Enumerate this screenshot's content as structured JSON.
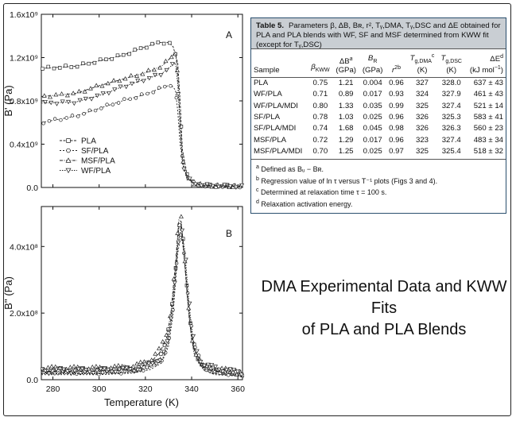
{
  "table": {
    "title_bold": "Table 5.",
    "title_text": "Parameters β, ΔB, Bʀ, r², Tᵧ,DMA, Tᵧ,DSC and ΔE obtained for PLA and PLA blends with WF, SF and MSF determined from KWW fit (except for Tᵧ,DSC)",
    "headers": [
      "Sample",
      "β_KWW",
      "ΔB^a (GPa)",
      "B_R (GPa)",
      "r^2b",
      "T_g,DMA^c (K)",
      "T_g,DSC (K)",
      "ΔE^d (kJ mol−1)"
    ],
    "header_display": {
      "sample": "Sample",
      "beta": "β",
      "beta_sub": "KWW",
      "db": "ΔB",
      "db_sup": "a",
      "db_unit": "(GPa)",
      "br": "B",
      "br_sub": "R",
      "br_unit": "(GPa)",
      "r2": "r",
      "r2_sup": "2b",
      "tgdma": "T",
      "tgdma_sub": "g,DMA",
      "tgdma_sup": "c",
      "tgdma_unit": "(K)",
      "tgdsc": "T",
      "tgdsc_sub": "g,DSC",
      "tgdsc_unit": "(K)",
      "de": "ΔE",
      "de_sup": "d",
      "de_unit": "(kJ mol",
      "de_unit_sup": "−1",
      "de_unit_end": ")"
    },
    "rows": [
      [
        "PLA",
        "0.75",
        "1.21",
        "0.004",
        "0.96",
        "327",
        "328.0",
        "637 ± 43"
      ],
      [
        "WF/PLA",
        "0.71",
        "0.89",
        "0.017",
        "0.93",
        "324",
        "327.9",
        "461 ± 43"
      ],
      [
        "WF/PLA/MDI",
        "0.80",
        "1.33",
        "0.035",
        "0.99",
        "325",
        "327.4",
        "521 ± 14"
      ],
      [
        "SF/PLA",
        "0.78",
        "1.03",
        "0.025",
        "0.96",
        "326",
        "325.3",
        "583 ± 41"
      ],
      [
        "SF/PLA/MDI",
        "0.74",
        "1.68",
        "0.045",
        "0.98",
        "326",
        "326.3",
        "560 ± 23"
      ],
      [
        "MSF/PLA",
        "0.72",
        "1.29",
        "0.017",
        "0.96",
        "323",
        "327.4",
        "483 ± 34"
      ],
      [
        "MSF/PLA/MDI",
        "0.70",
        "1.25",
        "0.025",
        "0.97",
        "325",
        "325.4",
        "518 ± 32"
      ]
    ],
    "notes": {
      "a_mark": "a",
      "a_text": "Defined as Bᵤ − Bʀ.",
      "b_mark": "b",
      "b_text": "Regression value of ln τ versus T⁻¹ plots (Figs 3 and 4).",
      "c_mark": "c",
      "c_text": "Determined at relaxation time τ = 100 s.",
      "d_mark": "d",
      "d_text": "Relaxation activation energy."
    }
  },
  "headline": {
    "line1": "DMA Experimental Data and KWW Fits",
    "line2": "of PLA and PLA Blends"
  },
  "chart_data": [
    {
      "type": "line",
      "panel": "A",
      "ylabel": "B' (Pa)",
      "xlabel": "",
      "xlim": [
        275,
        362
      ],
      "ylim": [
        0,
        1600000000.0
      ],
      "x_ticks": [
        280,
        300,
        320,
        340,
        360
      ],
      "y_ticks": [
        0,
        400000000.0,
        800000000.0,
        1200000000.0,
        1600000000.0
      ],
      "y_tick_labels": [
        "0.0",
        "0.4x10⁹",
        "0.8x10⁹",
        "1.2x10⁹",
        "1.6x10⁹"
      ],
      "legend": [
        "PLA",
        "SF/PLA",
        "MSF/PLA",
        "WF/PLA"
      ],
      "legend_markers": [
        "square",
        "circle",
        "triangle-up",
        "triangle-down"
      ],
      "series": [
        {
          "name": "PLA",
          "marker": "square",
          "points": [
            [
              275,
              1100000000.0
            ],
            [
              290,
              1120000000.0
            ],
            [
              300,
              1170000000.0
            ],
            [
              310,
              1220000000.0
            ],
            [
              320,
              1300000000.0
            ],
            [
              326,
              1340000000.0
            ],
            [
              330,
              1340000000.0
            ],
            [
              332,
              1300000000.0
            ],
            [
              334,
              1150000000.0
            ],
            [
              335,
              800000000.0
            ],
            [
              336,
              350000000.0
            ],
            [
              338,
              120000000.0
            ],
            [
              340,
              50000000.0
            ],
            [
              345,
              20000000.0
            ],
            [
              350,
              15000000.0
            ],
            [
              362,
              10000000.0
            ]
          ]
        },
        {
          "name": "SF/PLA",
          "marker": "circle",
          "points": [
            [
              275,
              600000000.0
            ],
            [
              290,
              660000000.0
            ],
            [
              300,
              730000000.0
            ],
            [
              310,
              800000000.0
            ],
            [
              320,
              860000000.0
            ],
            [
              327,
              920000000.0
            ],
            [
              331,
              950000000.0
            ],
            [
              333,
              900000000.0
            ],
            [
              334,
              700000000.0
            ],
            [
              335,
              400000000.0
            ],
            [
              337,
              150000000.0
            ],
            [
              340,
              50000000.0
            ],
            [
              345,
              20000000.0
            ],
            [
              362,
              10000000.0
            ]
          ]
        },
        {
          "name": "MSF/PLA",
          "marker": "triangle-up",
          "points": [
            [
              275,
              840000000.0
            ],
            [
              290,
              870000000.0
            ],
            [
              300,
              940000000.0
            ],
            [
              310,
              1000000000.0
            ],
            [
              320,
              1060000000.0
            ],
            [
              327,
              1120000000.0
            ],
            [
              331,
              1200000000.0
            ],
            [
              333,
              1250000000.0
            ],
            [
              334,
              1050000000.0
            ],
            [
              335,
              600000000.0
            ],
            [
              336,
              250000000.0
            ],
            [
              338,
              100000000.0
            ],
            [
              341,
              40000000.0
            ],
            [
              345,
              20000000.0
            ],
            [
              362,
              10000000.0
            ]
          ]
        },
        {
          "name": "WF/PLA",
          "marker": "triangle-down",
          "points": [
            [
              275,
              780000000.0
            ],
            [
              290,
              790000000.0
            ],
            [
              300,
              850000000.0
            ],
            [
              310,
              930000000.0
            ],
            [
              320,
              1000000000.0
            ],
            [
              327,
              1050000000.0
            ],
            [
              331,
              1120000000.0
            ],
            [
              333,
              1150000000.0
            ],
            [
              334,
              950000000.0
            ],
            [
              335,
              550000000.0
            ],
            [
              336,
              220000000.0
            ],
            [
              338,
              90000000.0
            ],
            [
              341,
              40000000.0
            ],
            [
              345,
              20000000.0
            ],
            [
              362,
              10000000.0
            ]
          ]
        }
      ]
    },
    {
      "type": "line",
      "panel": "B",
      "ylabel": "B'' (Pa)",
      "xlabel": "Temperature (K)",
      "xlim": [
        275,
        362
      ],
      "ylim": [
        0,
        520000000.0
      ],
      "x_ticks": [
        280,
        300,
        320,
        340,
        360
      ],
      "y_ticks": [
        0,
        200000000.0,
        400000000.0
      ],
      "y_tick_labels": [
        "0.0",
        "2.0x10⁸",
        "4.0x10⁸"
      ],
      "series": [
        {
          "name": "PLA",
          "marker": "square",
          "points": [
            [
              275,
              20000000.0
            ],
            [
              300,
              20000000.0
            ],
            [
              315,
              25000000.0
            ],
            [
              322,
              40000000.0
            ],
            [
              326,
              60000000.0
            ],
            [
              329,
              100000000.0
            ],
            [
              331,
              180000000.0
            ],
            [
              333,
              320000000.0
            ],
            [
              334.5,
              460000000.0
            ],
            [
              335.5,
              470000000.0
            ],
            [
              336.5,
              400000000.0
            ],
            [
              338,
              260000000.0
            ],
            [
              340,
              120000000.0
            ],
            [
              343,
              50000000.0
            ],
            [
              348,
              20000000.0
            ],
            [
              362,
              10000000.0
            ]
          ]
        },
        {
          "name": "SF/PLA",
          "marker": "circle",
          "points": [
            [
              275,
              15000000.0
            ],
            [
              300,
              15000000.0
            ],
            [
              315,
              20000000.0
            ],
            [
              322,
              30000000.0
            ],
            [
              327,
              50000000.0
            ],
            [
              330,
              100000000.0
            ],
            [
              332,
              200000000.0
            ],
            [
              334,
              380000000.0
            ],
            [
              335.5,
              440000000.0
            ],
            [
              337,
              360000000.0
            ],
            [
              339,
              200000000.0
            ],
            [
              341,
              90000000.0
            ],
            [
              345,
              30000000.0
            ],
            [
              350,
              15000000.0
            ],
            [
              362,
              10000000.0
            ]
          ]
        },
        {
          "name": "MSF/PLA",
          "marker": "triangle-up",
          "points": [
            [
              275,
              25000000.0
            ],
            [
              300,
              25000000.0
            ],
            [
              315,
              30000000.0
            ],
            [
              322,
              50000000.0
            ],
            [
              326,
              80000000.0
            ],
            [
              329,
              120000000.0
            ],
            [
              331,
              200000000.0
            ],
            [
              333,
              350000000.0
            ],
            [
              334.5,
              480000000.0
            ],
            [
              335.5,
              475000000.0
            ],
            [
              337,
              350000000.0
            ],
            [
              339,
              180000000.0
            ],
            [
              341,
              80000000.0
            ],
            [
              345,
              30000000.0
            ],
            [
              362,
              12000000.0
            ]
          ]
        },
        {
          "name": "WF/PLA",
          "marker": "triangle-down",
          "points": [
            [
              275,
              18000000.0
            ],
            [
              300,
              18000000.0
            ],
            [
              315,
              22000000.0
            ],
            [
              322,
              35000000.0
            ],
            [
              327,
              55000000.0
            ],
            [
              330,
              110000000.0
            ],
            [
              332,
              220000000.0
            ],
            [
              334,
              400000000.0
            ],
            [
              335.5,
              460000000.0
            ],
            [
              337,
              390000000.0
            ],
            [
              339,
              220000000.0
            ],
            [
              341,
              100000000.0
            ],
            [
              345,
              35000000.0
            ],
            [
              362,
              10000000.0
            ]
          ]
        }
      ]
    }
  ]
}
